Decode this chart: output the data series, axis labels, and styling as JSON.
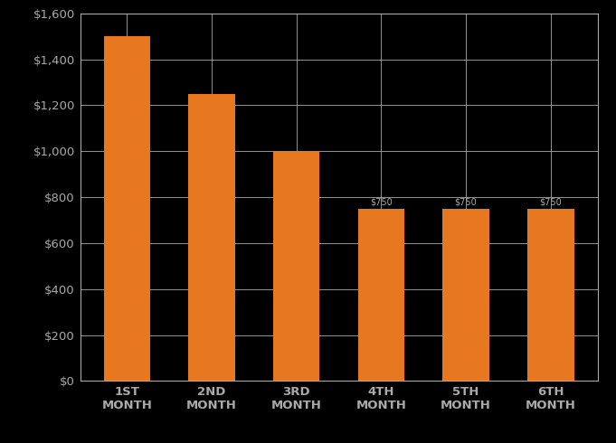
{
  "categories": [
    "1ST\nMONTH",
    "2ND\nMONTH",
    "3RD\nMONTH",
    "4TH\nMONTH",
    "5TH\nMONTH",
    "6TH\nMONTH"
  ],
  "values": [
    1500,
    1250,
    1000,
    750,
    750,
    750
  ],
  "bar_color": "#E87820",
  "bar_labels": [
    "",
    "",
    "",
    "$750",
    "$750",
    "$750"
  ],
  "background_color": "#000000",
  "plot_bg_color": "#000000",
  "grid_color": "#aaaaaa",
  "text_color": "#aaaaaa",
  "ylim": [
    0,
    1600
  ],
  "yticks": [
    0,
    200,
    400,
    600,
    800,
    1000,
    1200,
    1400,
    1600
  ],
  "ytick_labels": [
    "$0",
    "$200",
    "$400",
    "$600",
    "$800",
    "$1,000",
    "$1,200",
    "$1,400",
    "$1,600"
  ],
  "bar_width": 0.55,
  "label_fontsize": 7,
  "tick_fontsize": 9.5
}
